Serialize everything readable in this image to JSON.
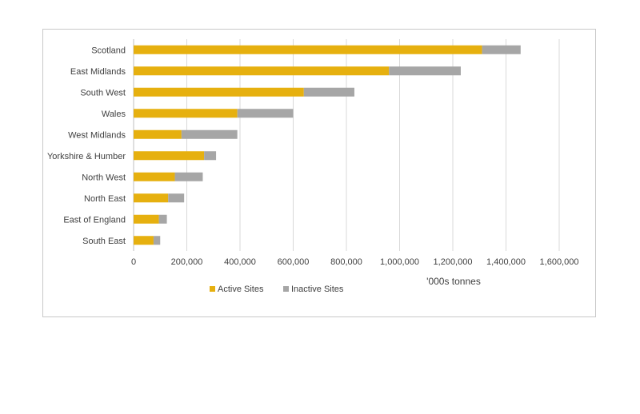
{
  "chart_data": {
    "type": "bar",
    "orientation": "horizontal",
    "stacked": true,
    "categories": [
      "Scotland",
      "East Midlands",
      "South West",
      "Wales",
      "West Midlands",
      "Yorkshire & Humber",
      "North West",
      "North East",
      "East of England",
      "South East"
    ],
    "series": [
      {
        "name": "Active Sites",
        "color": "#e6b00f",
        "values": [
          1310000,
          960000,
          640000,
          390000,
          180000,
          265000,
          155000,
          130000,
          95000,
          75000
        ]
      },
      {
        "name": "Inactive Sites",
        "color": "#a6a6a6",
        "values": [
          145000,
          270000,
          190000,
          210000,
          210000,
          45000,
          105000,
          60000,
          30000,
          25000
        ]
      }
    ],
    "xlabel": "'000s tonnes",
    "ylabel": "",
    "xlim": [
      0,
      1600000
    ],
    "x_ticks": [
      "0",
      "200,000",
      "400,000",
      "600,000",
      "800,000",
      "1,000,000",
      "1,200,000",
      "1,400,000",
      "1,600,000"
    ],
    "grid": "vertical",
    "legend_position": "bottom"
  }
}
